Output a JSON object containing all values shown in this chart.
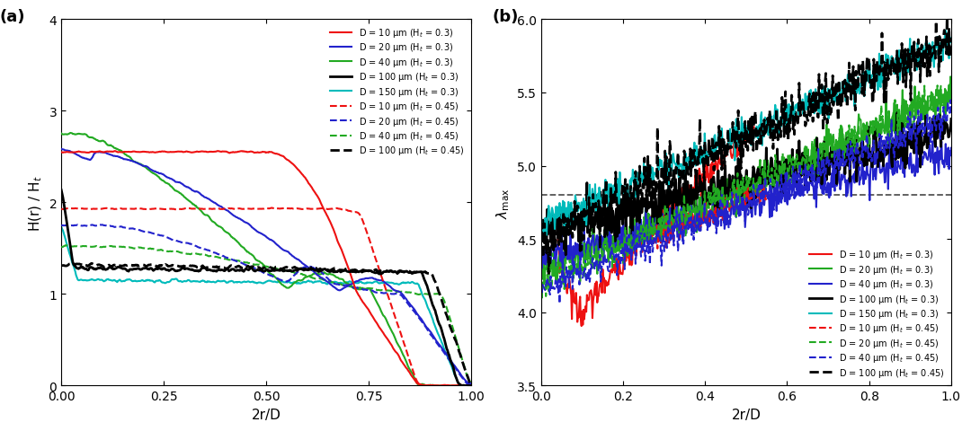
{
  "fig_width": 10.8,
  "fig_height": 4.81,
  "panel_a": {
    "xlabel": "2r/D",
    "ylabel": "H(r) / H$_t$",
    "xlim": [
      0,
      1
    ],
    "ylim": [
      0,
      4
    ],
    "yticks": [
      0,
      1,
      2,
      3,
      4
    ],
    "xticks": [
      0,
      0.25,
      0.5,
      0.75,
      1.0
    ],
    "label": "(a)"
  },
  "panel_b": {
    "xlabel": "2r/D",
    "ylabel": "$\\lambda_{\\mathrm{max}}$",
    "xlim": [
      0,
      1
    ],
    "ylim": [
      3.5,
      6
    ],
    "yticks": [
      3.5,
      4.0,
      4.5,
      5.0,
      5.5,
      6.0
    ],
    "xticks": [
      0,
      0.2,
      0.4,
      0.6,
      0.8,
      1.0
    ],
    "label": "(b)",
    "hline_y": 4.8
  },
  "colors": {
    "red": "#EE1111",
    "blue": "#2222CC",
    "green": "#22AA22",
    "black": "#000000",
    "cyan": "#00BBBB"
  },
  "legend_a": [
    {
      "label": "D = 10 μm (H$_t$ = 0.3)",
      "color": "#EE1111",
      "ls": "-",
      "lw": 1.5
    },
    {
      "label": "D = 20 μm (H$_t$ = 0.3)",
      "color": "#2222CC",
      "ls": "-",
      "lw": 1.5
    },
    {
      "label": "D = 40 μm (H$_t$ = 0.3)",
      "color": "#22AA22",
      "ls": "-",
      "lw": 1.5
    },
    {
      "label": "D = 100 μm (H$_t$ = 0.3)",
      "color": "#000000",
      "ls": "-",
      "lw": 2.0
    },
    {
      "label": "D = 150 μm (H$_t$ = 0.3)",
      "color": "#00BBBB",
      "ls": "-",
      "lw": 1.5
    },
    {
      "label": "D = 10 μm (H$_t$ = 0.45)",
      "color": "#EE1111",
      "ls": "--",
      "lw": 1.5
    },
    {
      "label": "D = 20 μm (H$_t$ = 0.45)",
      "color": "#2222CC",
      "ls": "--",
      "lw": 1.5
    },
    {
      "label": "D = 40 μm (H$_t$ = 0.45)",
      "color": "#22AA22",
      "ls": "--",
      "lw": 1.5
    },
    {
      "label": "D = 100 μm (H$_t$ = 0.45)",
      "color": "#000000",
      "ls": "--",
      "lw": 2.0
    }
  ],
  "legend_b": [
    {
      "label": "D = 10 μm (H$_t$ = 0.3)",
      "color": "#EE1111",
      "ls": "-",
      "lw": 1.5
    },
    {
      "label": "D = 20 μm (H$_t$ = 0.3)",
      "color": "#22AA22",
      "ls": "-",
      "lw": 1.5
    },
    {
      "label": "D = 40 μm (H$_t$ = 0.3)",
      "color": "#2222CC",
      "ls": "-",
      "lw": 1.5
    },
    {
      "label": "D = 100 μm (H$_t$ = 0.3)",
      "color": "#000000",
      "ls": "-",
      "lw": 2.0
    },
    {
      "label": "D = 150 μm (H$_t$ = 0.3)",
      "color": "#00BBBB",
      "ls": "-",
      "lw": 1.5
    },
    {
      "label": "D = 10 μm (H$_t$ = 0.45)",
      "color": "#EE1111",
      "ls": "--",
      "lw": 1.5
    },
    {
      "label": "D = 20 μm (H$_t$ = 0.45)",
      "color": "#22AA22",
      "ls": "--",
      "lw": 1.5
    },
    {
      "label": "D = 40 μm (H$_t$ = 0.45)",
      "color": "#2222CC",
      "ls": "--",
      "lw": 1.5
    },
    {
      "label": "D = 100 μm (H$_t$ = 0.45)",
      "color": "#000000",
      "ls": "--",
      "lw": 2.0
    }
  ]
}
